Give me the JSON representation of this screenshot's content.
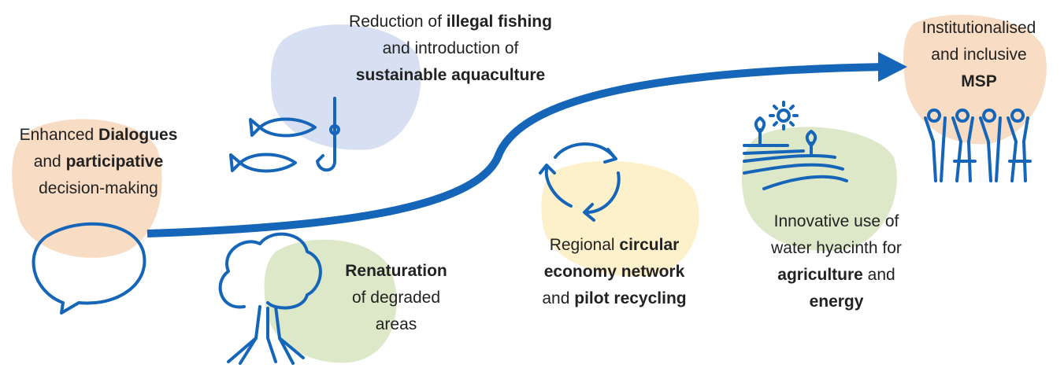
{
  "nodes": [
    {
      "lines": [
        [
          {
            "text": "Enhanced ",
            "bold": false
          },
          {
            "text": "Dialogues",
            "bold": true
          }
        ],
        [
          {
            "text": "and ",
            "bold": false
          },
          {
            "text": "participative",
            "bold": true
          }
        ],
        [
          {
            "text": "decision-making",
            "bold": false
          }
        ]
      ]
    },
    {
      "lines": [
        [
          {
            "text": "Reduction of ",
            "bold": false
          },
          {
            "text": "illegal fishing",
            "bold": true
          }
        ],
        [
          {
            "text": "and introduction of",
            "bold": false
          }
        ],
        [
          {
            "text": "sustainable aquaculture",
            "bold": true
          }
        ]
      ]
    },
    {
      "lines": [
        [
          {
            "text": "Institutionalised",
            "bold": false
          }
        ],
        [
          {
            "text": "and inclusive",
            "bold": false
          }
        ],
        [
          {
            "text": "MSP",
            "bold": true
          }
        ]
      ]
    },
    {
      "lines": [
        [
          {
            "text": "Renaturation",
            "bold": true
          }
        ],
        [
          {
            "text": "of degraded",
            "bold": false
          }
        ],
        [
          {
            "text": "areas",
            "bold": false
          }
        ]
      ]
    },
    {
      "lines": [
        [
          {
            "text": "Regional ",
            "bold": false
          },
          {
            "text": "circular",
            "bold": true
          }
        ],
        [
          {
            "text": "economy network",
            "bold": true
          }
        ],
        [
          {
            "text": "and ",
            "bold": false
          },
          {
            "text": "pilot recycling",
            "bold": true
          }
        ]
      ]
    },
    {
      "lines": [
        [
          {
            "text": "Innovative use of",
            "bold": false
          }
        ],
        [
          {
            "text": "water hyacinth for",
            "bold": false
          }
        ],
        [
          {
            "text": "agriculture",
            "bold": true
          },
          {
            "text": " and",
            "bold": false
          }
        ],
        [
          {
            "text": "energy",
            "bold": true
          }
        ]
      ]
    }
  ]
}
